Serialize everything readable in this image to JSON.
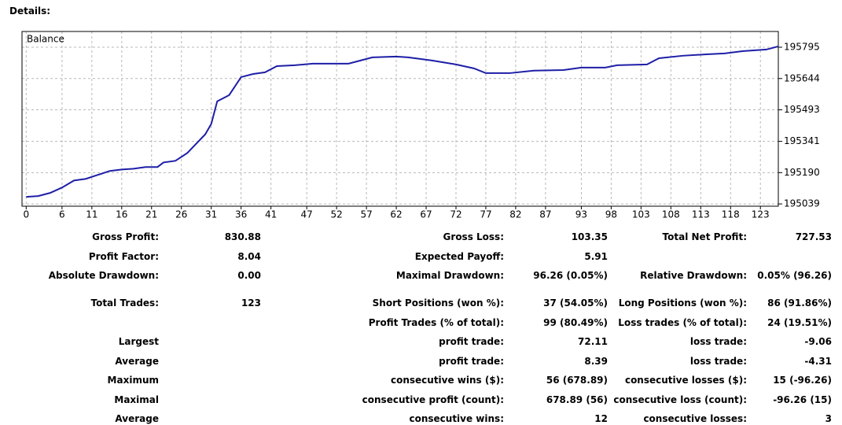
{
  "heading": "Details:",
  "chart_data": {
    "type": "line",
    "legend": "Balance",
    "color": "#1e1ea8",
    "grid": true,
    "x": [
      0,
      2,
      4,
      6,
      8,
      10,
      12,
      14,
      16,
      18,
      20,
      22,
      23,
      25,
      27,
      30,
      31,
      32,
      34,
      36,
      38,
      40,
      42,
      45,
      48,
      54,
      56,
      58,
      62,
      64,
      68,
      72,
      75,
      77,
      81,
      85,
      90,
      93,
      97,
      99,
      104,
      106,
      110,
      114,
      117,
      120,
      124,
      126
    ],
    "values": [
      195073,
      195077,
      195092,
      195118,
      195152,
      195160,
      195179,
      195198,
      195205,
      195209,
      195217,
      195217,
      195239,
      195247,
      195285,
      195375,
      195425,
      195534,
      195564,
      195651,
      195666,
      195674,
      195704,
      195708,
      195716,
      195716,
      195731,
      195746,
      195750,
      195746,
      195731,
      195712,
      195693,
      195670,
      195670,
      195682,
      195685,
      195697,
      195697,
      195708,
      195712,
      195742,
      195754,
      195761,
      195765,
      195776,
      195784,
      195799
    ],
    "xlim": [
      -0.7,
      126
    ],
    "xticks": [
      0,
      6,
      11,
      16,
      21,
      26,
      31,
      36,
      41,
      47,
      52,
      57,
      62,
      67,
      72,
      77,
      82,
      87,
      93,
      98,
      103,
      108,
      113,
      118,
      123
    ],
    "ylim": [
      195028,
      195871
    ],
    "yticks": [
      195039,
      195190,
      195341,
      195493,
      195644,
      195795
    ]
  },
  "table": {
    "rows": [
      [
        "Gross Profit:",
        "830.88",
        "Gross Loss:",
        "103.35",
        "Total Net Profit:",
        "727.53"
      ],
      [
        "Profit Factor:",
        "8.04",
        "Expected Payoff:",
        "5.91",
        null,
        null
      ],
      [
        "Absolute Drawdown:",
        "0.00",
        "Maximal Drawdown:",
        "96.26 (0.05%)",
        "Relative Drawdown:",
        "0.05% (96.26)"
      ],
      [
        "Total Trades:",
        "123",
        "Short Positions (won %):",
        "37 (54.05%)",
        "Long Positions (won %):",
        "86 (91.86%)"
      ],
      [
        null,
        null,
        "Profit Trades (% of total):",
        "99 (80.49%)",
        "Loss trades (% of total):",
        "24 (19.51%)"
      ],
      [
        "Largest",
        null,
        "profit trade:",
        "72.11",
        "loss trade:",
        "-9.06"
      ],
      [
        "Average",
        null,
        "profit trade:",
        "8.39",
        "loss trade:",
        "-4.31"
      ],
      [
        "Maximum",
        null,
        "consecutive wins ($):",
        "56 (678.89)",
        "consecutive losses ($):",
        "15 (-96.26)"
      ],
      [
        "Maximal",
        null,
        "consecutive profit (count):",
        "678.89 (56)",
        "consecutive loss (count):",
        "-96.26 (15)"
      ],
      [
        "Average",
        null,
        "consecutive wins:",
        "12",
        "consecutive losses:",
        "3"
      ]
    ]
  }
}
